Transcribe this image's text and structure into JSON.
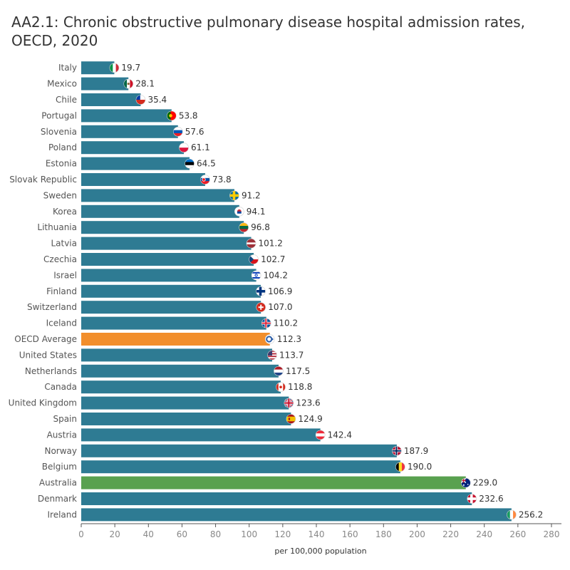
{
  "chart_data": {
    "type": "bar",
    "orientation": "horizontal",
    "title": "AA2.1: Chronic obstructive pulmonary disease hospital admission rates, OECD, 2020",
    "xlabel": "per 100,000 population",
    "ylabel": "",
    "xlim": [
      0,
      280
    ],
    "xticks": [
      0,
      20,
      40,
      60,
      80,
      100,
      120,
      140,
      160,
      180,
      200,
      220,
      240,
      260,
      280
    ],
    "grid": false,
    "legend": "none",
    "colors": {
      "default": "#2e7b93",
      "oecd_average": "#f28e2b",
      "australia": "#59a14f"
    },
    "categories": [
      "Italy",
      "Mexico",
      "Chile",
      "Portugal",
      "Slovenia",
      "Poland",
      "Estonia",
      "Slovak Republic",
      "Sweden",
      "Korea",
      "Lithuania",
      "Latvia",
      "Czechia",
      "Israel",
      "Finland",
      "Switzerland",
      "Iceland",
      "OECD Average",
      "United States",
      "Netherlands",
      "Canada",
      "United Kingdom",
      "Spain",
      "Austria",
      "Norway",
      "Belgium",
      "Australia",
      "Denmark",
      "Ireland"
    ],
    "values": [
      19.7,
      28.1,
      35.4,
      53.8,
      57.6,
      61.1,
      64.5,
      73.8,
      91.2,
      94.1,
      96.8,
      101.2,
      102.7,
      104.2,
      106.9,
      107.0,
      110.2,
      112.3,
      113.7,
      117.5,
      118.8,
      123.6,
      124.9,
      142.4,
      187.9,
      190.0,
      229.0,
      232.6,
      256.2
    ],
    "value_labels": [
      "19.7",
      "28.1",
      "35.4",
      "53.8",
      "57.6",
      "61.1",
      "64.5",
      "73.8",
      "91.2",
      "94.1",
      "96.8",
      "101.2",
      "102.7",
      "104.2",
      "106.9",
      "107.0",
      "110.2",
      "112.3",
      "113.7",
      "117.5",
      "118.8",
      "123.6",
      "124.9",
      "142.4",
      "187.9",
      "190.0",
      "229.0",
      "232.6",
      "256.2"
    ],
    "flag_icons": [
      "italy-flag-icon",
      "mexico-flag-icon",
      "chile-flag-icon",
      "portugal-flag-icon",
      "slovenia-flag-icon",
      "poland-flag-icon",
      "estonia-flag-icon",
      "slovakia-flag-icon",
      "sweden-flag-icon",
      "korea-flag-icon",
      "lithuania-flag-icon",
      "latvia-flag-icon",
      "czechia-flag-icon",
      "israel-flag-icon",
      "finland-flag-icon",
      "switzerland-flag-icon",
      "iceland-flag-icon",
      "oecd-logo-icon",
      "usa-flag-icon",
      "netherlands-flag-icon",
      "canada-flag-icon",
      "uk-flag-icon",
      "spain-flag-icon",
      "austria-flag-icon",
      "norway-flag-icon",
      "belgium-flag-icon",
      "australia-flag-icon",
      "denmark-flag-icon",
      "ireland-flag-icon"
    ]
  }
}
